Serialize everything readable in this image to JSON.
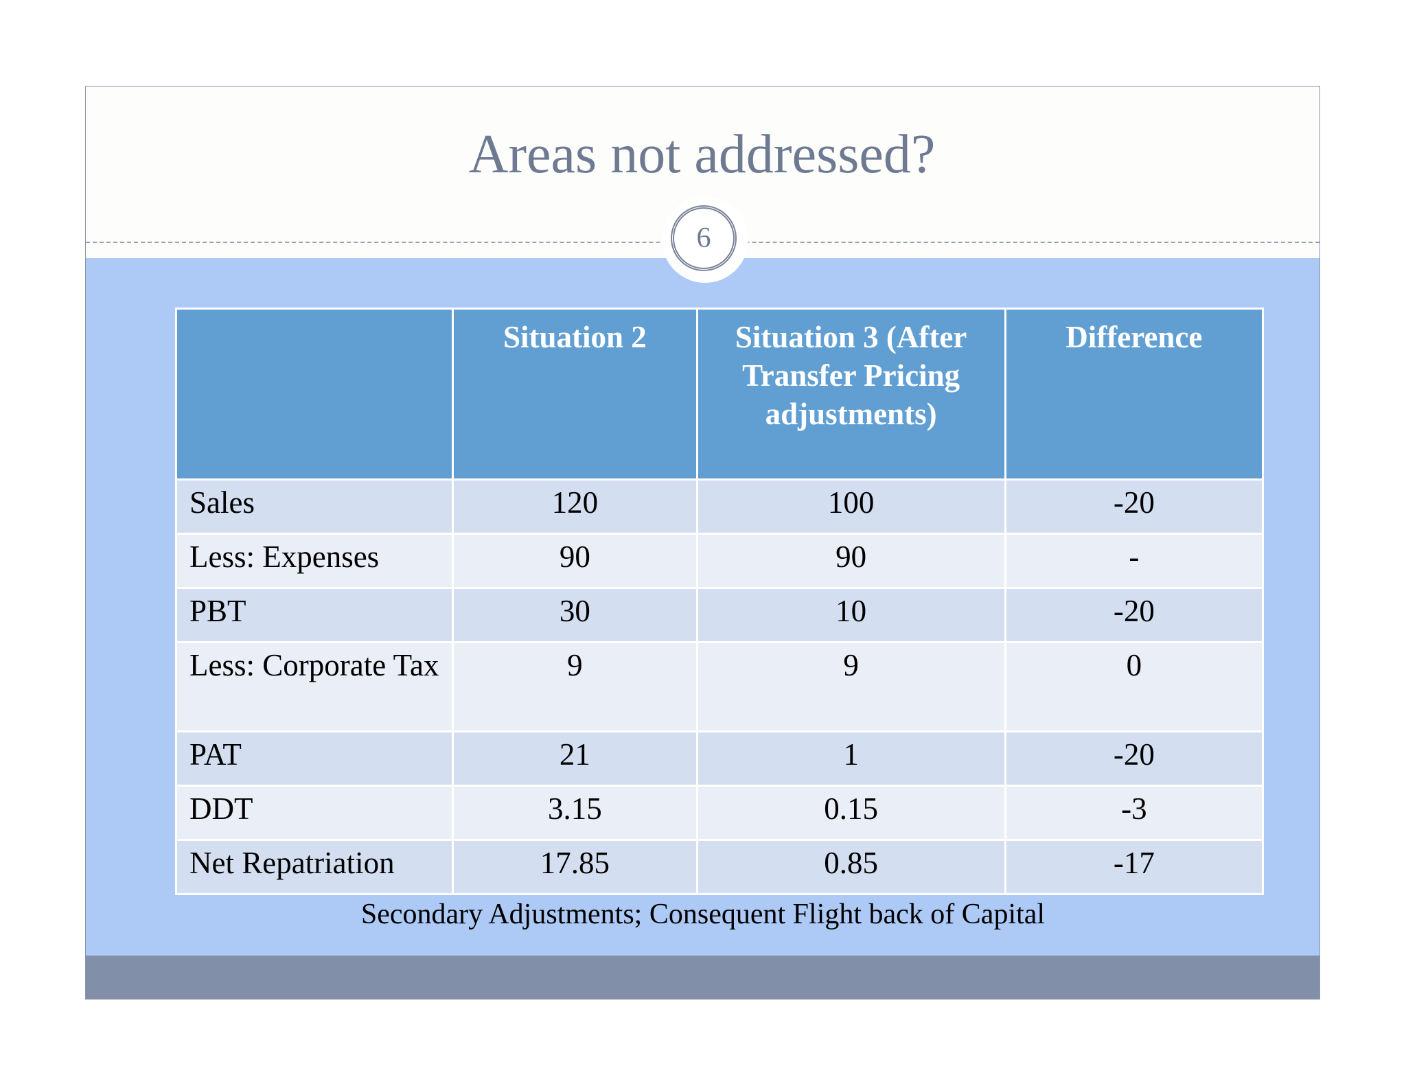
{
  "slide": {
    "title": "Areas not addressed?",
    "slide_number": "6",
    "table": {
      "header": [
        "",
        "Situation 2",
        "Situation 3 (After Transfer Pricing adjustments)",
        "Difference"
      ],
      "rows": [
        [
          "Sales",
          "120",
          "100",
          "-20"
        ],
        [
          "Less: Expenses",
          "90",
          "90",
          "-"
        ],
        [
          "PBT",
          "30",
          "10",
          "-20"
        ],
        [
          "Less: Corporate Tax",
          "9",
          "9",
          "0"
        ],
        [
          "PAT",
          "21",
          "1",
          "-20"
        ],
        [
          "DDT",
          "3.15",
          "0.15",
          "-3"
        ],
        [
          "Net Repatriation",
          "17.85",
          "0.85",
          "-17"
        ]
      ]
    },
    "caption": "Secondary Adjustments;  Consequent Flight back of Capital"
  }
}
